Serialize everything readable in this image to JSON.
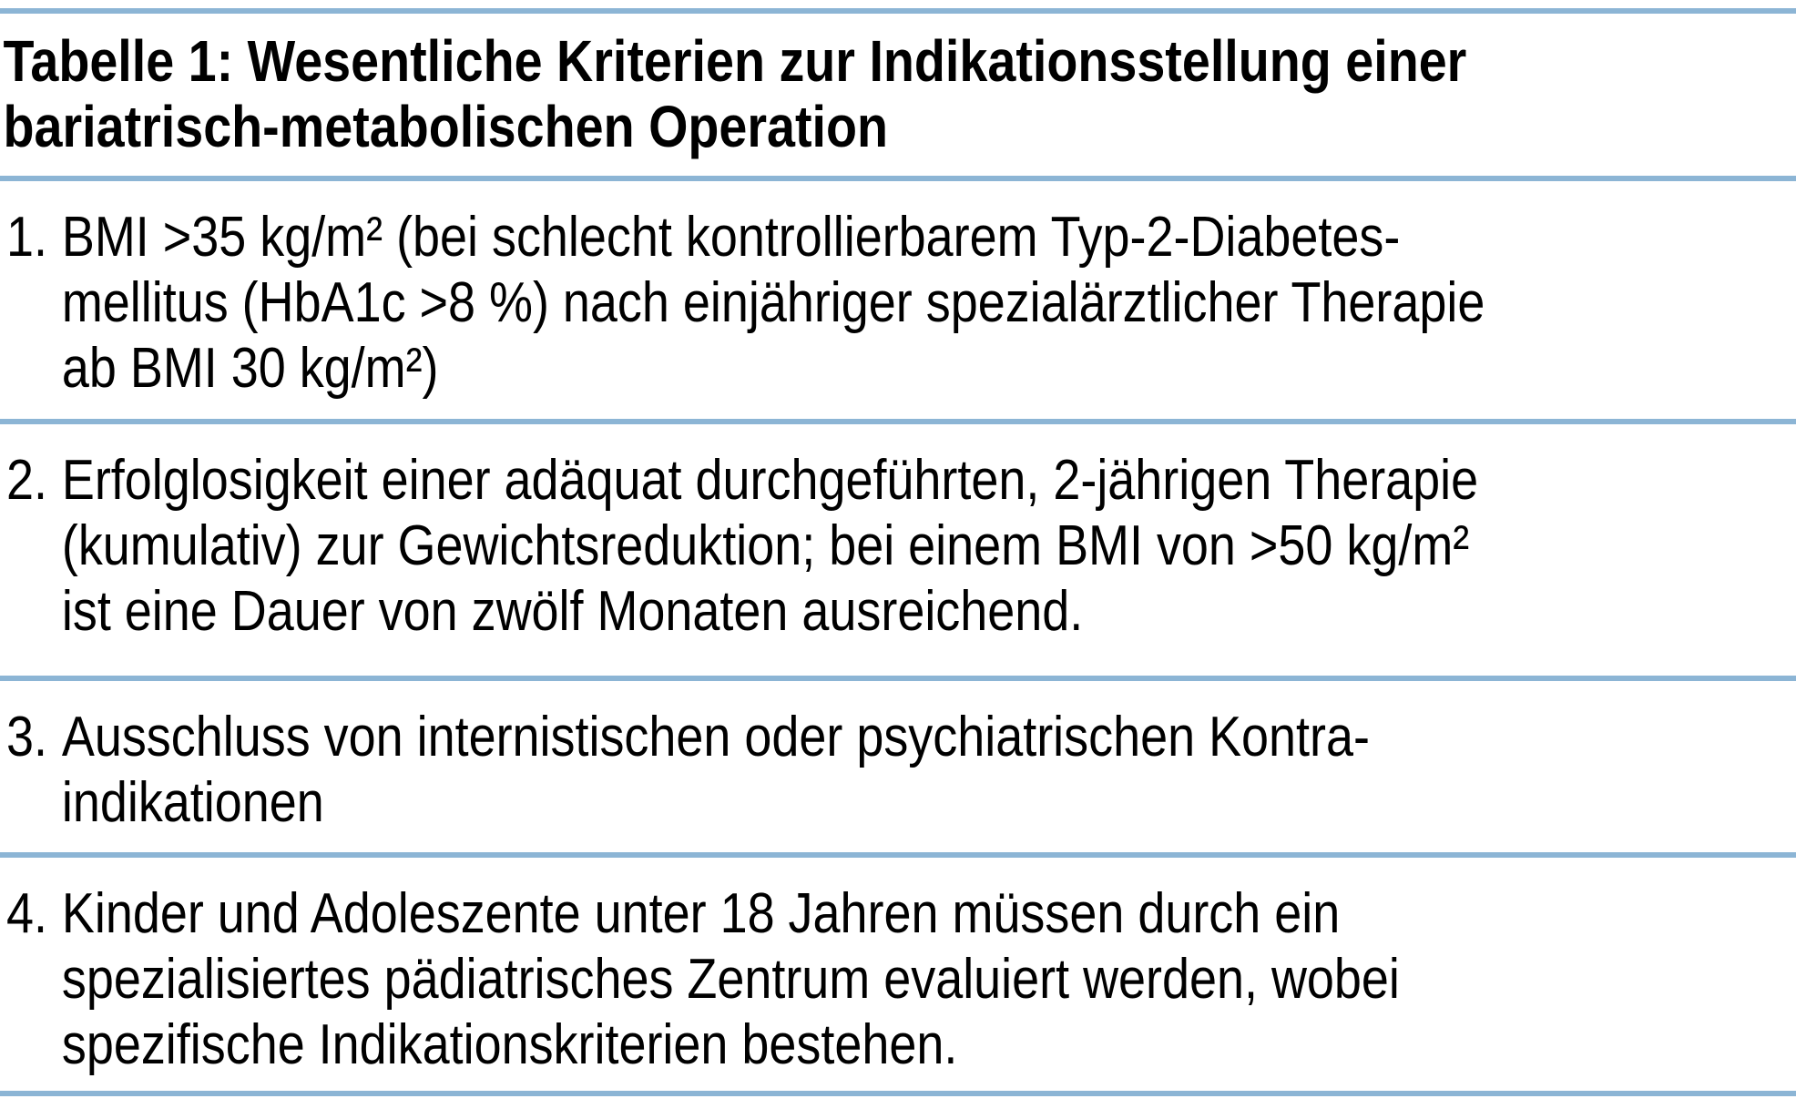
{
  "accent_color": "#8cb5d5",
  "text_color": "#000000",
  "title": {
    "lines": [
      "Tabelle 1: Wesentliche Kriterien zur Indikationsstellung einer",
      "bariatrisch-metabolischen Operation"
    ]
  },
  "items": [
    {
      "number": "1.",
      "lines": [
        "BMI >35 kg/m² (bei schlecht kontrollierbarem Typ-2-Diabetes-",
        "mellitus (HbA1c >8 %) nach einjähriger spezialärztlicher Therapie",
        "ab BMI 30 kg/m²)"
      ]
    },
    {
      "number": "2.",
      "lines": [
        "Erfolglosigkeit einer adäquat durchgeführten, 2-jährigen Therapie",
        "(kumulativ) zur Gewichtsreduktion; bei einem BMI von >50 kg/m²",
        "ist eine Dauer von zwölf Monaten ausreichend."
      ]
    },
    {
      "number": "3.",
      "lines": [
        "Ausschluss von internistischen oder psychiatrischen Kontra-",
        "indikationen"
      ]
    },
    {
      "number": "4.",
      "lines": [
        "Kinder und Adoleszente unter 18 Jahren müssen durch ein",
        "spezialisiertes pädiatrisches Zentrum evaluiert werden, wobei",
        "spezifische Indikationskriterien bestehen."
      ]
    }
  ]
}
